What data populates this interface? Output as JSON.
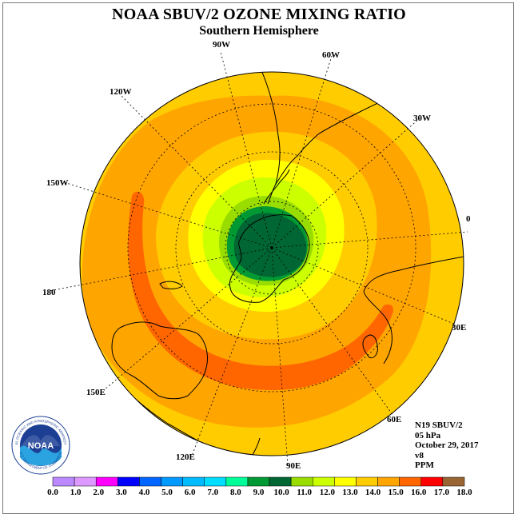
{
  "header": {
    "title": "NOAA SBUV/2 OZONE MIXING RATIO",
    "subtitle": "Southern Hemisphere"
  },
  "map": {
    "projection": "polar stereographic, south pole centered",
    "longitude_labels": [
      "0",
      "30W",
      "60W",
      "90W",
      "120W",
      "150W",
      "180",
      "150E",
      "120E",
      "90E",
      "60E",
      "30E"
    ],
    "field": "ozone mixing ratio",
    "levels_summary": "Maximum (16-17 PPM, orange-red) in a mid-latitude ring; minimum (9-10 PPM, dark green) over Antarctica",
    "colors": {
      "ocean_background": "#ffcc00",
      "outer_ring": "#ffa500",
      "band_15_16": "#ff6600",
      "band_13_14": "#ffcc00",
      "band_12_13": "#ffff00",
      "band_11_12": "#ccff00",
      "band_10_11": "#99dd00",
      "band_9_10": "#009933",
      "band_8_9": "#006633"
    }
  },
  "info_block": {
    "satellite": "N19 SBUV/2",
    "level": "05 hPa",
    "date": "October 29, 2017",
    "version": "v8",
    "units": "PPM"
  },
  "logo": {
    "center_text": "NOAA",
    "ring_text": "NATIONAL OCEANIC AND ATMOSPHERIC ADMINISTRATION",
    "bottom_text": "U.S. DEPARTMENT OF COMMERCE"
  },
  "colorbar": {
    "labels": [
      "0.0",
      "1.0",
      "2.0",
      "3.0",
      "4.0",
      "5.0",
      "6.0",
      "7.0",
      "8.0",
      "9.0",
      "10.0",
      "11.0",
      "12.0",
      "13.0",
      "14.0",
      "15.0",
      "16.0",
      "17.0",
      "18.0"
    ],
    "colors": [
      "#bb88ff",
      "#dd99ff",
      "#ff00ff",
      "#0000ff",
      "#0066ff",
      "#0099ff",
      "#00bbff",
      "#00ddff",
      "#00ff99",
      "#009933",
      "#006633",
      "#99dd00",
      "#ccff00",
      "#ffff00",
      "#ffcc00",
      "#ffa500",
      "#ff6600",
      "#ff0000",
      "#996633"
    ]
  }
}
